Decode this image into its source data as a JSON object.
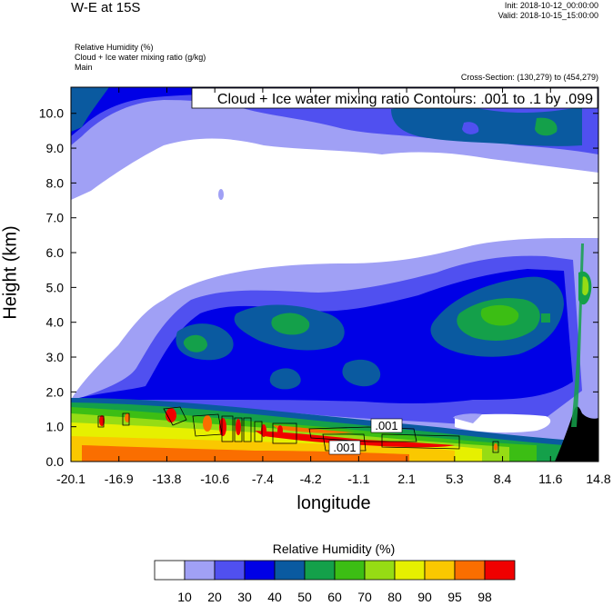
{
  "header": {
    "title": "W-E at 15S",
    "init": "Init: 2018-10-12_00:00:00",
    "valid": "Valid: 2018-10-15_15:00:00"
  },
  "fields": {
    "line1": "Relative Humidity   (%)",
    "line2": "Cloud + Ice water mixing ratio   (g/kg)",
    "line3": "Main"
  },
  "cross_section": "Cross-Section: (130,279) to (454,279)",
  "chart_data": {
    "type": "heatmap",
    "title": "W-E at 15S",
    "xlabel": "longitude",
    "ylabel": "Height (km)",
    "x_ticks": [
      "-20.1",
      "-16.9",
      "-13.8",
      "-10.6",
      "-7.4",
      "-4.2",
      "-1.1",
      "2.1",
      "5.3",
      "8.4",
      "11.6",
      "14.8"
    ],
    "y_ticks": [
      "0.0",
      "1.0",
      "2.0",
      "3.0",
      "4.0",
      "5.0",
      "6.0",
      "7.0",
      "8.0",
      "9.0",
      "10.0"
    ],
    "xlim": [
      -20.1,
      14.8
    ],
    "ylim": [
      0.0,
      10.75
    ],
    "contour_info": "Cloud + Ice water mixing ratio Contours: .001 to .1 by .099",
    "contour_labels": [
      ".001",
      ".001"
    ],
    "colorbar": {
      "title": "Relative Humidity  (%)",
      "levels": [
        "10",
        "20",
        "30",
        "40",
        "50",
        "60",
        "70",
        "80",
        "90",
        "95",
        "98"
      ],
      "colors": [
        "#ffffff",
        "#a0a0f5",
        "#5050f0",
        "#0000e6",
        "#0a5aa0",
        "#14a04a",
        "#3cbe14",
        "#96dc14",
        "#e6f000",
        "#fac800",
        "#fa6e00",
        "#f00000"
      ]
    }
  }
}
